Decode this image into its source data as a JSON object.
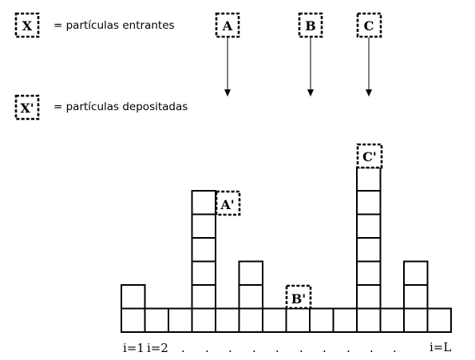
{
  "legend": {
    "incoming_symbol": "X",
    "incoming_text": "= partículas entrantes",
    "deposited_symbol": "X'",
    "deposited_text": "= partículas depositadas"
  },
  "incoming_particles": [
    {
      "label": "A"
    },
    {
      "label": "B"
    },
    {
      "label": "C"
    }
  ],
  "deposited_particles": [
    {
      "label": "A'"
    },
    {
      "label": "B'"
    },
    {
      "label": "C'"
    }
  ],
  "lattice": {
    "column_count": 14,
    "column_heights": [
      2,
      1,
      1,
      6,
      1,
      3,
      1,
      1,
      1,
      1,
      7,
      1,
      3,
      1
    ]
  },
  "axis_labels": {
    "first": "i=1",
    "second": "i=2",
    "dots": [
      ".",
      ".",
      ".",
      ".",
      ".",
      ".",
      ".",
      ".",
      ".",
      "."
    ],
    "last": "i=L"
  }
}
